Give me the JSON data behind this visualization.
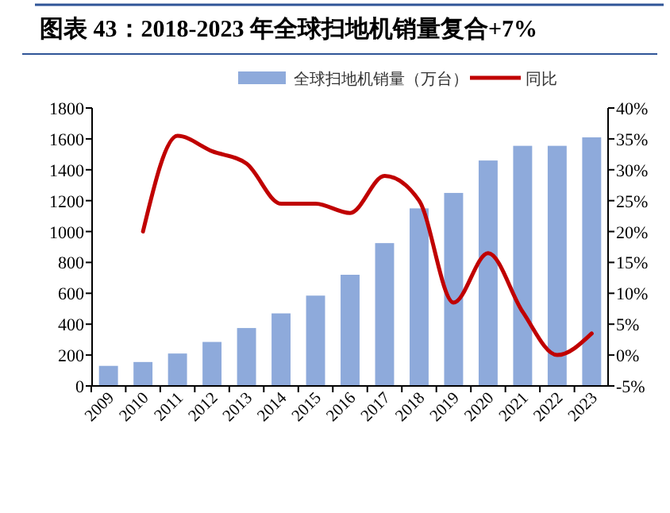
{
  "chart_data": {
    "type": "bar",
    "title": "图表 43：2018-2023 年全球扫地机销量复合+7%",
    "categories": [
      "2009",
      "2010",
      "2011",
      "2012",
      "2013",
      "2014",
      "2015",
      "2016",
      "2017",
      "2018",
      "2019",
      "2020",
      "2021",
      "2022",
      "2023"
    ],
    "series": [
      {
        "name": "全球扫地机销量（万台）",
        "color": "#8eaadb",
        "values": [
          130,
          155,
          210,
          285,
          375,
          470,
          585,
          720,
          925,
          1150,
          1250,
          1460,
          1555,
          1555,
          1610
        ]
      },
      {
        "name": "同比",
        "type": "line",
        "axis": "y2",
        "color": "#c00000",
        "values": [
          null,
          20,
          35.5,
          33,
          31,
          24.5,
          24.5,
          23,
          29,
          25,
          8.5,
          16.5,
          7,
          0,
          3.5
        ]
      }
    ],
    "ylim": [
      0,
      1800
    ],
    "yticks": [
      0,
      200,
      400,
      600,
      800,
      1000,
      1200,
      1400,
      1600,
      1800
    ],
    "y2lim": [
      -5,
      40
    ],
    "y2ticks": [
      {
        "value": -5,
        "label": "-5%"
      },
      {
        "value": 0,
        "label": "0%"
      },
      {
        "value": 5,
        "label": "5%"
      },
      {
        "value": 10,
        "label": "10%"
      },
      {
        "value": 15,
        "label": "15%"
      },
      {
        "value": 20,
        "label": "20%"
      },
      {
        "value": 25,
        "label": "25%"
      },
      {
        "value": 30,
        "label": "30%"
      },
      {
        "value": 35,
        "label": "35%"
      },
      {
        "value": 40,
        "label": "40%"
      }
    ],
    "legend": "top"
  }
}
